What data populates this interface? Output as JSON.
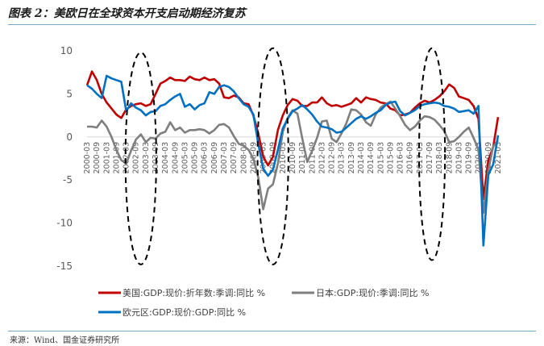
{
  "figure": {
    "title": "图表 2：美欧日在全球资本开支启动期经济复苏",
    "source": "来源：Wind、国金证券研究所"
  },
  "chart_data": {
    "type": "line",
    "title": "",
    "xlabel": "",
    "ylabel": "",
    "ylim": [
      -15,
      10
    ],
    "yticks": [
      -15,
      -10,
      -5,
      0,
      5,
      10
    ],
    "grid": false,
    "legend_position": "bottom",
    "x": [
      "2000-03",
      "2000-06",
      "2000-09",
      "2000-12",
      "2001-03",
      "2001-06",
      "2001-09",
      "2001-12",
      "2002-03",
      "2002-06",
      "2002-09",
      "2002-12",
      "2003-03",
      "2003-06",
      "2003-09",
      "2003-12",
      "2004-03",
      "2004-06",
      "2004-09",
      "2004-12",
      "2005-03",
      "2005-06",
      "2005-09",
      "2005-12",
      "2006-03",
      "2006-06",
      "2006-09",
      "2006-12",
      "2007-03",
      "2007-06",
      "2007-09",
      "2007-12",
      "2008-03",
      "2008-06",
      "2008-09",
      "2008-12",
      "2009-03",
      "2009-06",
      "2009-09",
      "2009-12",
      "2010-03",
      "2010-06",
      "2010-09",
      "2010-12",
      "2011-03",
      "2011-06",
      "2011-09",
      "2011-12",
      "2012-03",
      "2012-06",
      "2012-09",
      "2012-12",
      "2013-03",
      "2013-06",
      "2013-09",
      "2013-12",
      "2014-03",
      "2014-06",
      "2014-09",
      "2014-12",
      "2015-03",
      "2015-06",
      "2015-09",
      "2015-12",
      "2016-03",
      "2016-06",
      "2016-09",
      "2016-12",
      "2017-03",
      "2017-06",
      "2017-09",
      "2017-12",
      "2018-03",
      "2018-06",
      "2018-09",
      "2018-12",
      "2019-03",
      "2019-06",
      "2019-09",
      "2019-12",
      "2020-03",
      "2020-06",
      "2020-09",
      "2020-12",
      "2021-03"
    ],
    "xtick_labels": [
      "2000-03",
      "2000-09",
      "2001-03",
      "2001-09",
      "2002-03",
      "2002-09",
      "2003-03",
      "2003-09",
      "2004-03",
      "2004-09",
      "2005-03",
      "2005-09",
      "2006-03",
      "2006-09",
      "2007-03",
      "2007-09",
      "2008-03",
      "2008-09",
      "2009-03",
      "2009-09",
      "2010-03",
      "2010-09",
      "2011-03",
      "2011-09",
      "2012-03",
      "2012-09",
      "2013-03",
      "2013-09",
      "2014-03",
      "2014-09",
      "2015-03",
      "2015-09",
      "2016-03",
      "2016-09",
      "2017-03",
      "2017-09",
      "2018-03",
      "2018-09",
      "2019-03",
      "2019-09",
      "2020-03",
      "2020-09",
      "2021-03"
    ],
    "series": [
      {
        "name": "美国:GDP:现价:折年数:季调:同比 %",
        "color": "#c00000",
        "values": [
          6.0,
          7.6,
          6.6,
          5.0,
          4.0,
          3.3,
          2.6,
          2.2,
          3.2,
          3.6,
          3.8,
          3.9,
          3.6,
          3.8,
          5.0,
          6.2,
          6.5,
          6.9,
          6.6,
          6.6,
          6.5,
          7.0,
          6.7,
          6.6,
          6.9,
          6.6,
          6.7,
          6.2,
          4.6,
          4.5,
          4.8,
          4.6,
          3.9,
          3.8,
          2.5,
          0.4,
          -2.3,
          -3.3,
          -2.3,
          0.8,
          2.5,
          3.7,
          4.4,
          4.2,
          3.6,
          3.6,
          4.0,
          4.0,
          4.6,
          3.9,
          3.6,
          3.7,
          3.5,
          3.7,
          3.9,
          4.5,
          4.0,
          4.6,
          4.4,
          4.3,
          4.0,
          3.9,
          3.3,
          3.1,
          2.5,
          2.6,
          2.8,
          3.4,
          3.9,
          4.2,
          4.0,
          4.3,
          4.7,
          5.3,
          6.1,
          5.7,
          4.7,
          4.5,
          4.3,
          3.6,
          2.1,
          -7.2,
          -2.7,
          -1.2,
          2.3
        ]
      },
      {
        "name": "日本:GDP:现价:季调:同比 %",
        "color": "#7f7f7f",
        "values": [
          1.2,
          1.2,
          1.1,
          1.9,
          1.2,
          0.0,
          -1.5,
          -2.7,
          -3.1,
          -1.6,
          -0.3,
          0.3,
          -0.6,
          -0.1,
          -0.2,
          0.4,
          0.6,
          1.7,
          0.8,
          1.1,
          0.5,
          0.8,
          0.8,
          0.9,
          0.8,
          0.4,
          0.8,
          1.4,
          1.5,
          1.1,
          0.1,
          -0.8,
          -1.0,
          -1.5,
          -2.5,
          -4.7,
          -8.4,
          -6.0,
          -5.5,
          -3.1,
          0.6,
          2.2,
          3.1,
          2.7,
          -0.2,
          -2.9,
          -1.6,
          -0.1,
          1.8,
          1.9,
          -0.2,
          -0.6,
          0.4,
          1.6,
          3.2,
          3.1,
          2.6,
          1.7,
          1.3,
          2.6,
          3.4,
          3.8,
          4.1,
          3.3,
          2.4,
          1.4,
          0.8,
          1.2,
          1.9,
          2.4,
          2.3,
          2.0,
          1.4,
          0.7,
          -0.6,
          -0.5,
          0.0,
          0.6,
          1.1,
          -0.1,
          -1.5,
          -8.8,
          -3.9,
          -1.1,
          -0.4
        ]
      },
      {
        "name": "欧元区:GDP:现价:GDP:同比 %",
        "color": "#0070c0",
        "values": [
          6.0,
          5.6,
          5.0,
          4.5,
          7.1,
          6.8,
          6.6,
          6.4,
          3.0,
          3.9,
          3.4,
          3.1,
          2.5,
          2.9,
          3.0,
          3.6,
          3.8,
          4.3,
          4.7,
          5.0,
          3.5,
          3.8,
          3.2,
          3.7,
          3.9,
          5.2,
          5.0,
          5.8,
          6.0,
          5.8,
          5.3,
          4.5,
          3.8,
          3.5,
          2.6,
          -0.8,
          -3.7,
          -4.5,
          -3.8,
          -1.5,
          1.0,
          2.1,
          3.0,
          3.3,
          3.7,
          3.2,
          2.6,
          1.8,
          1.2,
          1.1,
          0.9,
          0.5,
          0.6,
          1.1,
          1.6,
          2.1,
          2.4,
          2.1,
          2.4,
          2.8,
          3.1,
          3.7,
          4.0,
          4.1,
          3.0,
          2.5,
          2.8,
          3.1,
          3.6,
          3.8,
          3.9,
          4.0,
          3.9,
          3.6,
          3.5,
          3.3,
          2.9,
          3.0,
          3.1,
          2.7,
          3.6,
          -12.6,
          -4.4,
          -3.2,
          0.2
        ]
      }
    ],
    "annotations": [
      "dashed-ellipse-2002",
      "dashed-ellipse-2009",
      "dashed-ellipse-2017"
    ]
  }
}
